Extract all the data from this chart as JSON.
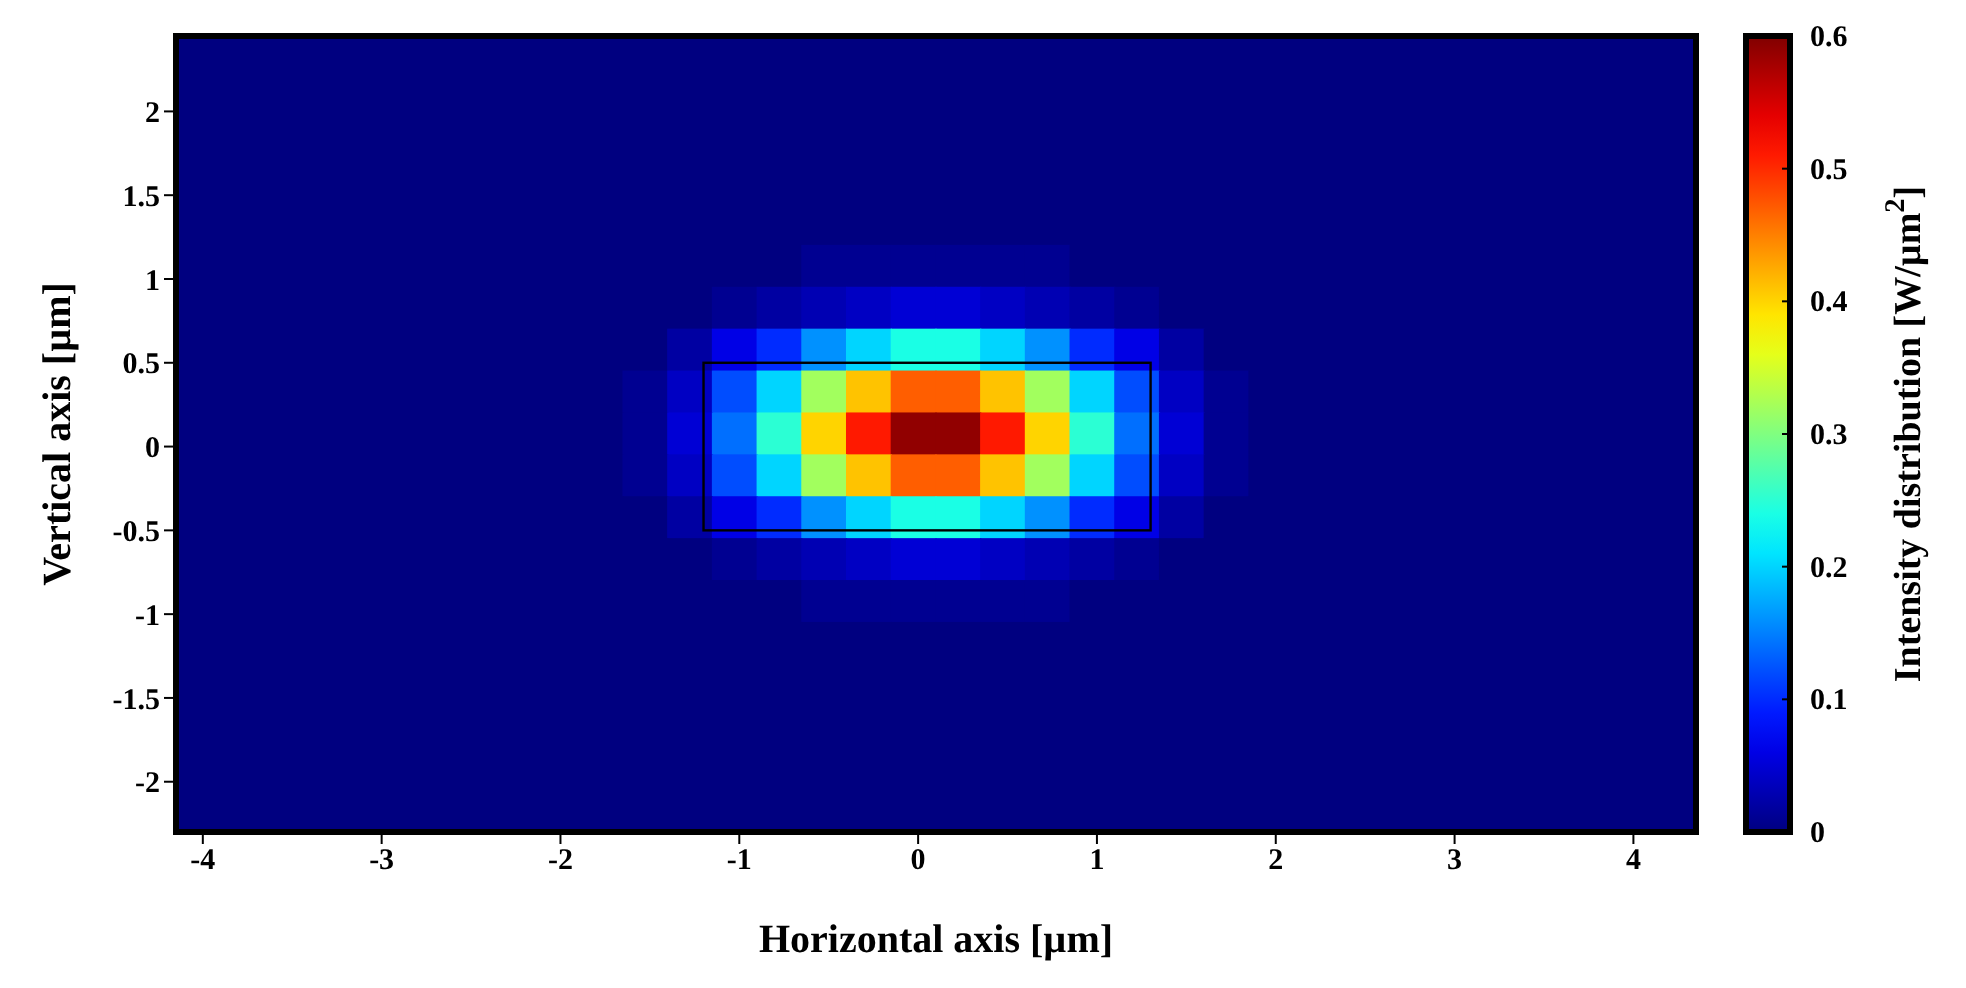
{
  "chart_data": {
    "type": "heatmap",
    "xlabel": "Horizontal axis [µm]",
    "ylabel": "Vertical axis [µm]",
    "clabel": "Intensity distribution [W/µm$^{2}$]",
    "xlim": [
      -4.15,
      4.35
    ],
    "xticks": [
      -4,
      -3,
      -2,
      -1,
      0,
      1,
      2,
      3,
      4
    ],
    "ylim": [
      -2.3,
      2.45
    ],
    "yticks": [
      -2,
      -1.5,
      -1,
      -0.5,
      0,
      0.5,
      1,
      1.5,
      2
    ],
    "clim": [
      0,
      0.6
    ],
    "cticks": [
      0,
      0.1,
      0.2,
      0.3,
      0.4,
      0.5,
      0.6
    ],
    "x": [
      -4.025,
      -3.775,
      -3.525,
      -3.275,
      -3.025,
      -2.775,
      -2.525,
      -2.275,
      -2.025,
      -1.775,
      -1.525,
      -1.275,
      -1.025,
      -0.775,
      -0.525,
      -0.275,
      -0.025,
      0.225,
      0.475,
      0.725,
      0.975,
      1.225,
      1.475,
      1.725,
      1.975,
      2.225,
      2.475,
      2.725,
      2.975,
      3.225,
      3.475,
      3.725,
      3.975,
      4.225
    ],
    "y": [
      2.325,
      2.075,
      1.825,
      1.575,
      1.325,
      1.075,
      0.825,
      0.575,
      0.325,
      0.075,
      -0.175,
      -0.425,
      -0.675,
      -0.925,
      -1.175,
      -1.425,
      -1.675,
      -1.925,
      -2.175
    ],
    "cells": [
      [
        0,
        0,
        0,
        0,
        0,
        0,
        0,
        0,
        0,
        0,
        0,
        0,
        0,
        0,
        0,
        0,
        0,
        0,
        0,
        0,
        0,
        0,
        0,
        0,
        0,
        0,
        0,
        0,
        0,
        0,
        0,
        0,
        0,
        0
      ],
      [
        0,
        0,
        0,
        0,
        0,
        0,
        0,
        0,
        0,
        0,
        0,
        0,
        0,
        0,
        0,
        0,
        0,
        0,
        0,
        0,
        0,
        0,
        0,
        0,
        0,
        0,
        0,
        0,
        0,
        0,
        0,
        0,
        0,
        0
      ],
      [
        0,
        0,
        0,
        0,
        0,
        0,
        0,
        0,
        0,
        0,
        0,
        0,
        0,
        0,
        0,
        0,
        0,
        0,
        0,
        0,
        0,
        0,
        0,
        0,
        0,
        0,
        0,
        0,
        0,
        0,
        0,
        0,
        0,
        0
      ],
      [
        0,
        0,
        0,
        0,
        0,
        0,
        0,
        0,
        0,
        0,
        0,
        0,
        0,
        0,
        0,
        0,
        0,
        0,
        0,
        0,
        0,
        0,
        0,
        0,
        0,
        0,
        0,
        0,
        0,
        0,
        0,
        0,
        0,
        0
      ],
      [
        0,
        0,
        0,
        0,
        0,
        0,
        0,
        0,
        0,
        0,
        0,
        0,
        0,
        0,
        0,
        0,
        0,
        0,
        0,
        0,
        0,
        0,
        0,
        0,
        0,
        0,
        0,
        0,
        0,
        0,
        0,
        0,
        0,
        0
      ],
      [
        0,
        0,
        0,
        0,
        0,
        0,
        0,
        0,
        0,
        0,
        0,
        0,
        0,
        0,
        0.01,
        0.01,
        0.01,
        0.01,
        0.01,
        0.01,
        0,
        0,
        0,
        0,
        0,
        0,
        0,
        0,
        0,
        0,
        0,
        0,
        0,
        0
      ],
      [
        0,
        0,
        0,
        0,
        0,
        0,
        0,
        0,
        0,
        0,
        0,
        0,
        0.01,
        0.02,
        0.03,
        0.04,
        0.05,
        0.05,
        0.04,
        0.03,
        0.02,
        0.01,
        0,
        0,
        0,
        0,
        0,
        0,
        0,
        0,
        0,
        0,
        0,
        0
      ],
      [
        0,
        0,
        0,
        0,
        0,
        0,
        0,
        0,
        0,
        0,
        0,
        0.02,
        0.06,
        0.1,
        0.16,
        0.2,
        0.24,
        0.24,
        0.2,
        0.16,
        0.1,
        0.06,
        0.02,
        0,
        0,
        0,
        0,
        0,
        0,
        0,
        0,
        0,
        0,
        0
      ],
      [
        0,
        0,
        0,
        0,
        0,
        0,
        0,
        0,
        0,
        0,
        0.01,
        0.04,
        0.12,
        0.2,
        0.32,
        0.41,
        0.47,
        0.47,
        0.41,
        0.32,
        0.2,
        0.12,
        0.04,
        0.01,
        0,
        0,
        0,
        0,
        0,
        0,
        0,
        0,
        0,
        0
      ],
      [
        0,
        0,
        0,
        0,
        0,
        0,
        0,
        0,
        0,
        0,
        0.01,
        0.05,
        0.14,
        0.25,
        0.4,
        0.51,
        0.59,
        0.59,
        0.51,
        0.4,
        0.25,
        0.14,
        0.05,
        0.01,
        0,
        0,
        0,
        0,
        0,
        0,
        0,
        0,
        0,
        0
      ],
      [
        0,
        0,
        0,
        0,
        0,
        0,
        0,
        0,
        0,
        0,
        0.01,
        0.04,
        0.12,
        0.2,
        0.32,
        0.41,
        0.47,
        0.47,
        0.41,
        0.32,
        0.2,
        0.12,
        0.04,
        0.01,
        0,
        0,
        0,
        0,
        0,
        0,
        0,
        0,
        0,
        0
      ],
      [
        0,
        0,
        0,
        0,
        0,
        0,
        0,
        0,
        0,
        0,
        0,
        0.02,
        0.06,
        0.1,
        0.16,
        0.2,
        0.24,
        0.24,
        0.2,
        0.16,
        0.1,
        0.06,
        0.02,
        0,
        0,
        0,
        0,
        0,
        0,
        0,
        0,
        0,
        0,
        0
      ],
      [
        0,
        0,
        0,
        0,
        0,
        0,
        0,
        0,
        0,
        0,
        0,
        0,
        0.01,
        0.02,
        0.03,
        0.04,
        0.05,
        0.05,
        0.04,
        0.03,
        0.02,
        0.01,
        0,
        0,
        0,
        0,
        0,
        0,
        0,
        0,
        0,
        0,
        0,
        0
      ],
      [
        0,
        0,
        0,
        0,
        0,
        0,
        0,
        0,
        0,
        0,
        0,
        0,
        0,
        0,
        0.01,
        0.01,
        0.01,
        0.01,
        0.01,
        0.01,
        0,
        0,
        0,
        0,
        0,
        0,
        0,
        0,
        0,
        0,
        0,
        0,
        0,
        0
      ],
      [
        0,
        0,
        0,
        0,
        0,
        0,
        0,
        0,
        0,
        0,
        0,
        0,
        0,
        0,
        0,
        0,
        0,
        0,
        0,
        0,
        0,
        0,
        0,
        0,
        0,
        0,
        0,
        0,
        0,
        0,
        0,
        0,
        0,
        0
      ],
      [
        0,
        0,
        0,
        0,
        0,
        0,
        0,
        0,
        0,
        0,
        0,
        0,
        0,
        0,
        0,
        0,
        0,
        0,
        0,
        0,
        0,
        0,
        0,
        0,
        0,
        0,
        0,
        0,
        0,
        0,
        0,
        0,
        0,
        0
      ],
      [
        0,
        0,
        0,
        0,
        0,
        0,
        0,
        0,
        0,
        0,
        0,
        0,
        0,
        0,
        0,
        0,
        0,
        0,
        0,
        0,
        0,
        0,
        0,
        0,
        0,
        0,
        0,
        0,
        0,
        0,
        0,
        0,
        0,
        0
      ],
      [
        0,
        0,
        0,
        0,
        0,
        0,
        0,
        0,
        0,
        0,
        0,
        0,
        0,
        0,
        0,
        0,
        0,
        0,
        0,
        0,
        0,
        0,
        0,
        0,
        0,
        0,
        0,
        0,
        0,
        0,
        0,
        0,
        0,
        0
      ],
      [
        0,
        0,
        0,
        0,
        0,
        0,
        0,
        0,
        0,
        0,
        0,
        0,
        0,
        0,
        0,
        0,
        0,
        0,
        0,
        0,
        0,
        0,
        0,
        0,
        0,
        0,
        0,
        0,
        0,
        0,
        0,
        0,
        0,
        0
      ]
    ]
  }
}
